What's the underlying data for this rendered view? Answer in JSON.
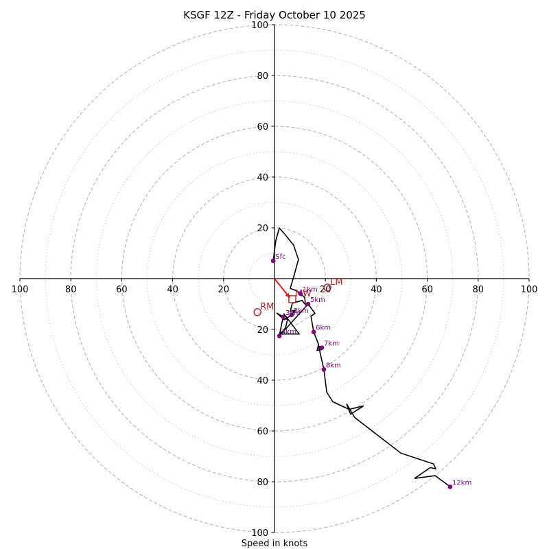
{
  "chart_data": {
    "type": "line",
    "subtype": "hodograph",
    "title": "KSGF 12Z - Friday October 10 2025",
    "xlabel": "Speed in knots",
    "ylabel": "",
    "xlim": [
      -100,
      100
    ],
    "ylim": [
      -100,
      100
    ],
    "grid": true,
    "major_rings": [
      20,
      40,
      60,
      80,
      100
    ],
    "minor_rings": [
      10,
      30,
      50,
      70,
      90
    ],
    "x_tick_labels": [
      {
        "value": -100,
        "label": "100"
      },
      {
        "value": -80,
        "label": "80"
      },
      {
        "value": -60,
        "label": "60"
      },
      {
        "value": -40,
        "label": "40"
      },
      {
        "value": -20,
        "label": "20"
      },
      {
        "value": 20,
        "label": "20"
      },
      {
        "value": 40,
        "label": "40"
      },
      {
        "value": 60,
        "label": "60"
      },
      {
        "value": 80,
        "label": "80"
      },
      {
        "value": 100,
        "label": "100"
      }
    ],
    "y_tick_labels": [
      {
        "value": 100,
        "label": "100"
      },
      {
        "value": 80,
        "label": "80"
      },
      {
        "value": 60,
        "label": "60"
      },
      {
        "value": 40,
        "label": "40"
      },
      {
        "value": 20,
        "label": "20"
      },
      {
        "value": -20,
        "label": "20"
      },
      {
        "value": -40,
        "label": "40"
      },
      {
        "value": -60,
        "label": "60"
      },
      {
        "value": -80,
        "label": "80"
      },
      {
        "value": -100,
        "label": "100"
      }
    ],
    "series": [
      {
        "name": "hodograph",
        "color": "#000000",
        "points": [
          [
            -0.5,
            7.0
          ],
          [
            0.5,
            15.0
          ],
          [
            1.9,
            19.9
          ],
          [
            3.8,
            17.8
          ],
          [
            7.5,
            13.2
          ],
          [
            9.4,
            7.5
          ],
          [
            7.8,
            1.6
          ],
          [
            6.2,
            -3.8
          ],
          [
            8.9,
            -4.9
          ],
          [
            10.2,
            -5.9
          ],
          [
            11.9,
            -7.5
          ],
          [
            12.1,
            -10.2
          ],
          [
            10.8,
            -8.6
          ],
          [
            7.0,
            -9.7
          ],
          [
            6.2,
            -12.9
          ],
          [
            8.1,
            -12.4
          ],
          [
            6.7,
            -14.3
          ],
          [
            3.8,
            -16.2
          ],
          [
            0.8,
            -13.5
          ],
          [
            3.5,
            -15.1
          ],
          [
            5.1,
            -16.2
          ],
          [
            4.3,
            -19.4
          ],
          [
            2.2,
            -21.8
          ],
          [
            9.7,
            -21.8
          ],
          [
            3.8,
            -14.0
          ],
          [
            3.0,
            -17.0
          ],
          [
            1.9,
            -22.6
          ],
          [
            13.2,
            -10.0
          ],
          [
            15.9,
            -13.7
          ],
          [
            14.3,
            -14.8
          ],
          [
            15.4,
            -21.0
          ],
          [
            17.3,
            -25.9
          ],
          [
            16.7,
            -28.3
          ],
          [
            18.3,
            -28.0
          ],
          [
            18.6,
            -27.2
          ],
          [
            17.3,
            -26.5
          ],
          [
            19.4,
            -35.8
          ],
          [
            20.5,
            -44.7
          ],
          [
            22.9,
            -48.5
          ],
          [
            29.3,
            -51.5
          ],
          [
            35.0,
            -50.1
          ],
          [
            29.9,
            -53.4
          ],
          [
            28.3,
            -49.3
          ],
          [
            31.5,
            -54.7
          ],
          [
            49.6,
            -68.7
          ],
          [
            62.5,
            -73.0
          ],
          [
            63.3,
            -74.9
          ],
          [
            61.2,
            -74.4
          ],
          [
            55.0,
            -78.7
          ],
          [
            63.1,
            -77.6
          ],
          [
            69.0,
            -82.0
          ]
        ]
      }
    ],
    "height_markers": [
      {
        "label": "Sfc",
        "u": -0.5,
        "v": 7.0
      },
      {
        "label": "1km",
        "u": 10.2,
        "v": -5.9
      },
      {
        "label": "2km",
        "u": 6.7,
        "v": -14.3
      },
      {
        "label": "3km",
        "u": 3.5,
        "v": -15.1
      },
      {
        "label": "4km",
        "u": 1.9,
        "v": -22.6
      },
      {
        "label": "5km",
        "u": 13.2,
        "v": -10.0
      },
      {
        "label": "6km",
        "u": 15.4,
        "v": -21.0
      },
      {
        "label": "7km",
        "u": 18.6,
        "v": -27.2
      },
      {
        "label": "8km",
        "u": 19.4,
        "v": -35.8
      },
      {
        "label": "12km",
        "u": 69.0,
        "v": -82.0
      }
    ],
    "motion_markers": [
      {
        "label": "LM",
        "u": 20.8,
        "v": -3.5,
        "shape": "circle"
      },
      {
        "label": "RM",
        "u": -6.7,
        "v": -13.2,
        "shape": "circle"
      },
      {
        "label": "MW",
        "u": 7.0,
        "v": -8.1,
        "shape": "square"
      }
    ],
    "storm_motion_vector": {
      "from": [
        0,
        0
      ],
      "to": [
        6.0,
        -7.5
      ],
      "color": "#ff0000"
    },
    "colors": {
      "height_marker": "#800080",
      "motion_marker": "#b22222",
      "major_ring": "#bbbbbb",
      "minor_ring": "#cccccc"
    }
  }
}
